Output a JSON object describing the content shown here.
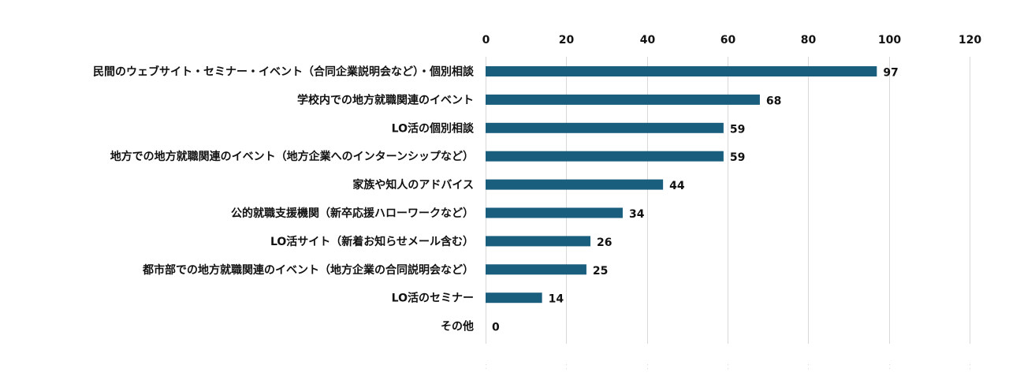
{
  "chart_data": {
    "type": "bar",
    "orientation": "horizontal",
    "x_axis_position": "top",
    "title": "",
    "xlabel": "",
    "ylabel": "",
    "xlim": [
      0,
      120
    ],
    "ticks": [
      0,
      20,
      40,
      60,
      80,
      100,
      120
    ],
    "grid": true,
    "legend": "none",
    "bar_color": "#1a5e7e",
    "categories": [
      "民間のウェブサイト・セミナー・イベント（合同企業説明会など）・個別相談",
      "学校内での地方就職関連のイベント",
      "LO活の個別相談",
      "地方での地方就職関連のイベント（地方企業へのインターンシップなど）",
      "家族や知人のアドバイス",
      "公的就職支援機関（新卒応援ハローワークなど）",
      "LO活サイト（新着お知らせメール含む）",
      "都市部での地方就職関連のイベント（地方企業の合同説明会など）",
      "LO活のセミナー",
      "その他"
    ],
    "values": [
      97,
      68,
      59,
      59,
      44,
      34,
      26,
      25,
      14,
      0
    ]
  }
}
